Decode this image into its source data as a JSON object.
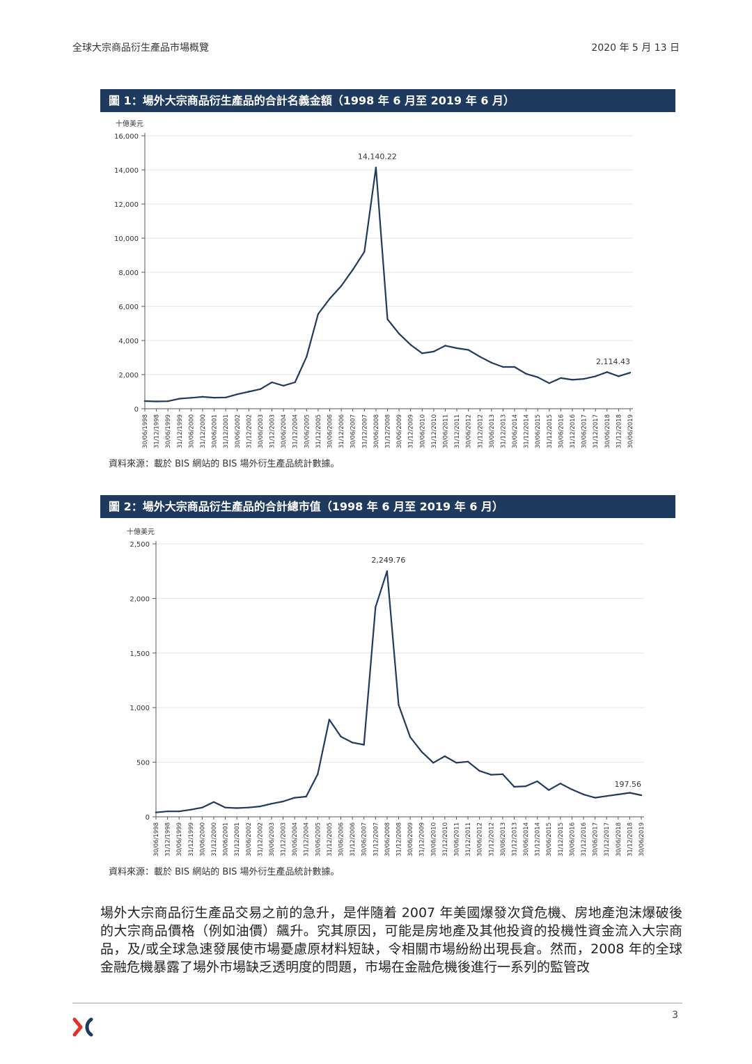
{
  "header": {
    "title": "全球大宗商品衍生產品市場概覽",
    "date": "2020 年 5 月 13 日"
  },
  "figure1": {
    "caption": "圖 1：場外大宗商品衍生產品的合計名義金額（1998 年 6 月至 2019 年 6 月）",
    "source": "資料來源：載於 BIS 網站的 BIS 場外衍生產品統計數據。"
  },
  "figure2": {
    "caption": "圖 2：場外大宗商品衍生產品的合計總市值（1998 年 6 月至 2019 年 6 月）",
    "source": "資料來源：載於 BIS 網站的 BIS 場外衍生產品統計數據。"
  },
  "chart_data": [
    {
      "type": "line",
      "ylabel": "十億美元",
      "ylim": [
        0,
        16000
      ],
      "yticks": [
        0,
        2000,
        4000,
        6000,
        8000,
        10000,
        12000,
        14000,
        16000
      ],
      "ytick_labels": [
        "0",
        "2,000",
        "4,000",
        "6,000",
        "8,000",
        "10,000",
        "12,000",
        "14,000",
        "16,000"
      ],
      "categories": [
        "30/06/1998",
        "31/12/1998",
        "30/06/1999",
        "31/12/1999",
        "30/06/2000",
        "31/12/2000",
        "30/06/2001",
        "31/12/2001",
        "30/06/2002",
        "31/12/2002",
        "30/06/2003",
        "31/12/2003",
        "30/06/2004",
        "31/12/2004",
        "30/06/2005",
        "31/12/2005",
        "30/06/2006",
        "31/12/2006",
        "30/06/2007",
        "31/12/2007",
        "30/06/2008",
        "31/12/2008",
        "30/06/2009",
        "31/12/2009",
        "30/06/2010",
        "31/12/2010",
        "30/06/2011",
        "31/12/2011",
        "30/06/2012",
        "31/12/2012",
        "30/06/2013",
        "31/12/2013",
        "30/06/2014",
        "31/12/2014",
        "30/06/2015",
        "31/12/2015",
        "30/06/2016",
        "31/12/2016",
        "30/06/2017",
        "31/12/2017",
        "30/06/2018",
        "31/12/2018",
        "30/06/2019"
      ],
      "values": [
        450,
        430,
        440,
        590,
        640,
        700,
        650,
        660,
        850,
        1000,
        1150,
        1550,
        1350,
        1550,
        3050,
        5550,
        6450,
        7200,
        8150,
        9200,
        14140.22,
        5250,
        4400,
        3750,
        3250,
        3350,
        3700,
        3550,
        3450,
        3050,
        2700,
        2450,
        2450,
        2050,
        1850,
        1500,
        1800,
        1700,
        1750,
        1900,
        2150,
        1900,
        2114.43
      ],
      "annotations": [
        {
          "index": 20,
          "label": "14,140.22"
        },
        {
          "index": 42,
          "label": "2,114.43"
        }
      ]
    },
    {
      "type": "line",
      "ylabel": "十億美元",
      "ylim": [
        0,
        2500
      ],
      "yticks": [
        0,
        500,
        1000,
        1500,
        2000,
        2500
      ],
      "ytick_labels": [
        "0",
        "500",
        "1,000",
        "1,500",
        "2,000",
        "2,500"
      ],
      "categories": [
        "30/06/1998",
        "31/12/1998",
        "30/06/1999",
        "31/12/1999",
        "30/06/2000",
        "31/12/2000",
        "30/06/2001",
        "31/12/2001",
        "30/06/2002",
        "31/12/2002",
        "30/06/2003",
        "31/12/2003",
        "30/06/2004",
        "31/12/2004",
        "30/06/2005",
        "31/12/2005",
        "30/06/2006",
        "31/12/2006",
        "30/06/2007",
        "31/12/2007",
        "30/06/2008",
        "31/12/2008",
        "30/06/2009",
        "31/12/2009",
        "30/06/2010",
        "31/12/2010",
        "30/06/2011",
        "31/12/2011",
        "30/06/2012",
        "31/12/2012",
        "30/06/2013",
        "31/12/2013",
        "30/06/2014",
        "31/12/2014",
        "30/06/2015",
        "31/12/2015",
        "30/06/2016",
        "31/12/2016",
        "30/06/2017",
        "31/12/2017",
        "30/06/2018",
        "31/12/2018",
        "30/06/2019"
      ],
      "values": [
        40,
        50,
        50,
        65,
        85,
        135,
        85,
        80,
        85,
        95,
        120,
        140,
        175,
        185,
        390,
        890,
        735,
        680,
        660,
        1920,
        2249.76,
        1025,
        730,
        595,
        495,
        555,
        495,
        505,
        420,
        385,
        390,
        275,
        280,
        325,
        245,
        305,
        250,
        205,
        175,
        190,
        205,
        220,
        197.56
      ],
      "annotations": [
        {
          "index": 20,
          "label": "2,249.76"
        },
        {
          "index": 42,
          "label": "197.56"
        }
      ]
    }
  ],
  "body": {
    "paragraph": "場外大宗商品衍生產品交易之前的急升，是伴隨着 2007 年美國爆發次貸危機、房地產泡沫爆破後的大宗商品價格（例如油價）飆升。究其原因，可能是房地產及其他投資的投機性資金流入大宗商品，及/或全球急速發展使市場憂慮原材料短缺，令相關市場紛紛出現長倉。然而，2008 年的全球金融危機暴露了場外市場缺乏透明度的問題，市場在金融危機後進行一系列的監管改"
  },
  "footer": {
    "page_number": "3",
    "logo_icon": "hkex-logo-icon",
    "logo_color": "#e0302a"
  },
  "colors": {
    "caption_bar": "#1f3a5f",
    "series_line": "#1f3a5f"
  }
}
